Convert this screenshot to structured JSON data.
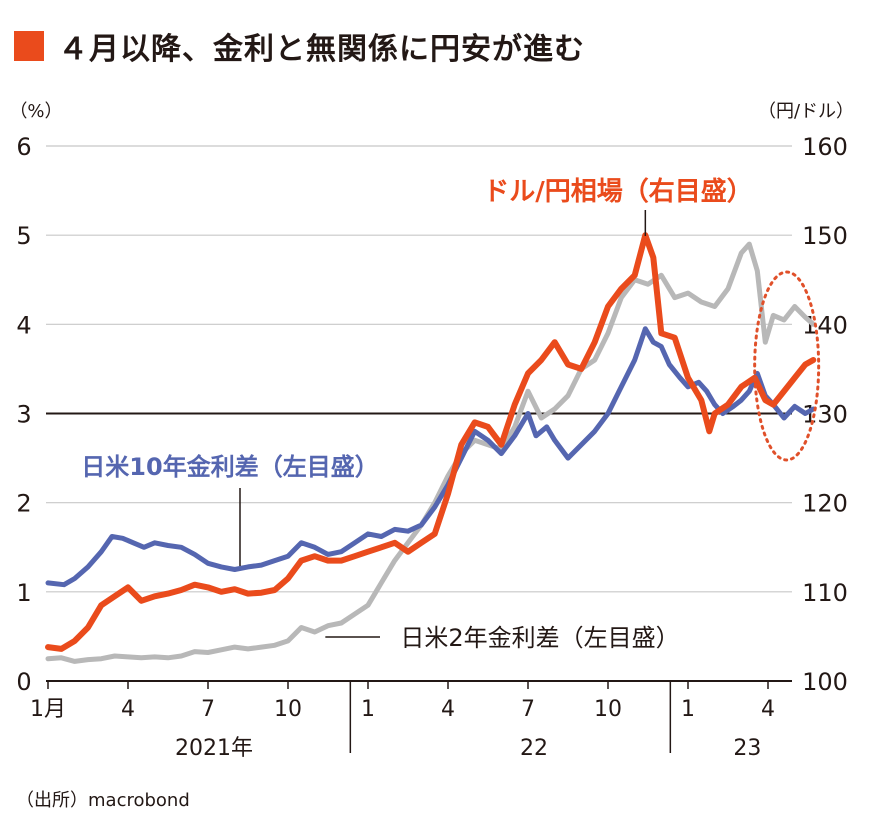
{
  "title": "４月以降、金利と無関係に円安が進む",
  "source": "（出所）macrobond",
  "colors": {
    "title_square": "#ea4b1c",
    "usdjpy": "#ea4b1c",
    "spread10y": "#5566b0",
    "spread2y": "#b8b8b8",
    "grid": "#c8c8c8",
    "highlight_ellipse": "#e0502a"
  },
  "chart_data": {
    "type": "line",
    "title": "４月以降、金利と無関係に円安が進む",
    "left_axis": {
      "unit_label": "（%）",
      "min": 0,
      "max": 6,
      "ticks": [
        "0",
        "1",
        "2",
        "3",
        "4",
        "5",
        "6"
      ]
    },
    "right_axis": {
      "unit_label": "（円/ドル）",
      "min": 100,
      "max": 160,
      "ticks": [
        "100",
        "110",
        "120",
        "130",
        "140",
        "150",
        "160"
      ]
    },
    "x_ticks": [
      {
        "label": "1月",
        "t": 0
      },
      {
        "label": "4",
        "t": 3
      },
      {
        "label": "7",
        "t": 6
      },
      {
        "label": "10",
        "t": 9
      },
      {
        "label": "1",
        "t": 12
      },
      {
        "label": "4",
        "t": 15
      },
      {
        "label": "7",
        "t": 18
      },
      {
        "label": "10",
        "t": 21
      },
      {
        "label": "1",
        "t": 24
      },
      {
        "label": "4",
        "t": 27
      }
    ],
    "year_labels": [
      {
        "label": "2021年",
        "t": 6
      },
      {
        "label": "22",
        "t": 18
      },
      {
        "label": "23",
        "t": 26
      }
    ],
    "year_separators_t": [
      11,
      23
    ],
    "x_range": [
      0,
      28.7
    ],
    "series": [
      {
        "name": "日米10年金利差（左目盛）",
        "axis": "left",
        "color_key": "spread10y",
        "points": [
          [
            0,
            1.1
          ],
          [
            0.6,
            1.08
          ],
          [
            1.0,
            1.15
          ],
          [
            1.5,
            1.28
          ],
          [
            2.0,
            1.45
          ],
          [
            2.4,
            1.62
          ],
          [
            2.8,
            1.6
          ],
          [
            3.2,
            1.55
          ],
          [
            3.6,
            1.5
          ],
          [
            4.0,
            1.55
          ],
          [
            4.5,
            1.52
          ],
          [
            5.0,
            1.5
          ],
          [
            5.5,
            1.42
          ],
          [
            6.0,
            1.32
          ],
          [
            6.5,
            1.28
          ],
          [
            7.0,
            1.25
          ],
          [
            7.5,
            1.28
          ],
          [
            8.0,
            1.3
          ],
          [
            8.5,
            1.35
          ],
          [
            9.0,
            1.4
          ],
          [
            9.5,
            1.55
          ],
          [
            10.0,
            1.5
          ],
          [
            10.5,
            1.42
          ],
          [
            11.0,
            1.45
          ],
          [
            11.5,
            1.55
          ],
          [
            12.0,
            1.65
          ],
          [
            12.5,
            1.62
          ],
          [
            13.0,
            1.7
          ],
          [
            13.5,
            1.68
          ],
          [
            14.0,
            1.75
          ],
          [
            14.5,
            1.95
          ],
          [
            15.0,
            2.2
          ],
          [
            15.5,
            2.5
          ],
          [
            16.0,
            2.8
          ],
          [
            16.5,
            2.7
          ],
          [
            17.0,
            2.55
          ],
          [
            17.5,
            2.75
          ],
          [
            18.0,
            3.0
          ],
          [
            18.3,
            2.75
          ],
          [
            18.7,
            2.85
          ],
          [
            19.0,
            2.7
          ],
          [
            19.5,
            2.5
          ],
          [
            20.0,
            2.65
          ],
          [
            20.5,
            2.8
          ],
          [
            21.0,
            3.0
          ],
          [
            21.5,
            3.3
          ],
          [
            22.0,
            3.6
          ],
          [
            22.4,
            3.95
          ],
          [
            22.7,
            3.8
          ],
          [
            23.0,
            3.75
          ],
          [
            23.3,
            3.55
          ],
          [
            23.7,
            3.4
          ],
          [
            24.0,
            3.3
          ],
          [
            24.4,
            3.35
          ],
          [
            24.7,
            3.25
          ],
          [
            25.0,
            3.1
          ],
          [
            25.3,
            3.0
          ],
          [
            25.7,
            3.08
          ],
          [
            26.0,
            3.15
          ],
          [
            26.3,
            3.25
          ],
          [
            26.6,
            3.45
          ],
          [
            26.9,
            3.2
          ],
          [
            27.2,
            3.1
          ],
          [
            27.6,
            2.95
          ],
          [
            28.0,
            3.08
          ],
          [
            28.4,
            3.0
          ],
          [
            28.7,
            3.05
          ]
        ]
      },
      {
        "name": "日米2年金利差（左目盛）",
        "axis": "left",
        "color_key": "spread2y",
        "points": [
          [
            0,
            0.25
          ],
          [
            0.5,
            0.26
          ],
          [
            1.0,
            0.22
          ],
          [
            1.5,
            0.24
          ],
          [
            2.0,
            0.25
          ],
          [
            2.5,
            0.28
          ],
          [
            3.0,
            0.27
          ],
          [
            3.5,
            0.26
          ],
          [
            4.0,
            0.27
          ],
          [
            4.5,
            0.26
          ],
          [
            5.0,
            0.28
          ],
          [
            5.5,
            0.33
          ],
          [
            6.0,
            0.32
          ],
          [
            6.5,
            0.35
          ],
          [
            7.0,
            0.38
          ],
          [
            7.5,
            0.36
          ],
          [
            8.0,
            0.38
          ],
          [
            8.5,
            0.4
          ],
          [
            9.0,
            0.45
          ],
          [
            9.5,
            0.6
          ],
          [
            10.0,
            0.55
          ],
          [
            10.5,
            0.62
          ],
          [
            11.0,
            0.65
          ],
          [
            11.5,
            0.75
          ],
          [
            12.0,
            0.85
          ],
          [
            12.5,
            1.1
          ],
          [
            13.0,
            1.35
          ],
          [
            13.5,
            1.55
          ],
          [
            14.0,
            1.75
          ],
          [
            14.5,
            2.0
          ],
          [
            15.0,
            2.3
          ],
          [
            15.5,
            2.55
          ],
          [
            16.0,
            2.7
          ],
          [
            16.5,
            2.65
          ],
          [
            17.0,
            2.6
          ],
          [
            17.5,
            2.85
          ],
          [
            18.0,
            3.25
          ],
          [
            18.5,
            2.95
          ],
          [
            19.0,
            3.05
          ],
          [
            19.5,
            3.2
          ],
          [
            20.0,
            3.5
          ],
          [
            20.5,
            3.6
          ],
          [
            21.0,
            3.9
          ],
          [
            21.5,
            4.3
          ],
          [
            22.0,
            4.5
          ],
          [
            22.5,
            4.45
          ],
          [
            23.0,
            4.55
          ],
          [
            23.5,
            4.3
          ],
          [
            24.0,
            4.35
          ],
          [
            24.5,
            4.25
          ],
          [
            25.0,
            4.2
          ],
          [
            25.5,
            4.4
          ],
          [
            26.0,
            4.8
          ],
          [
            26.3,
            4.9
          ],
          [
            26.6,
            4.6
          ],
          [
            26.9,
            3.8
          ],
          [
            27.2,
            4.1
          ],
          [
            27.6,
            4.05
          ],
          [
            28.0,
            4.2
          ],
          [
            28.4,
            4.08
          ],
          [
            28.7,
            4.0
          ]
        ]
      },
      {
        "name": "ドル/円相場（右目盛）",
        "axis": "right",
        "color_key": "usdjpy",
        "points": [
          [
            0,
            103.8
          ],
          [
            0.5,
            103.6
          ],
          [
            1.0,
            104.5
          ],
          [
            1.5,
            106.0
          ],
          [
            2.0,
            108.5
          ],
          [
            2.5,
            109.5
          ],
          [
            3.0,
            110.5
          ],
          [
            3.5,
            109.0
          ],
          [
            4.0,
            109.5
          ],
          [
            4.5,
            109.8
          ],
          [
            5.0,
            110.2
          ],
          [
            5.5,
            110.8
          ],
          [
            6.0,
            110.5
          ],
          [
            6.5,
            110.0
          ],
          [
            7.0,
            110.3
          ],
          [
            7.5,
            109.8
          ],
          [
            8.0,
            109.9
          ],
          [
            8.5,
            110.2
          ],
          [
            9.0,
            111.5
          ],
          [
            9.5,
            113.5
          ],
          [
            10.0,
            114.0
          ],
          [
            10.5,
            113.5
          ],
          [
            11.0,
            113.5
          ],
          [
            11.5,
            114.0
          ],
          [
            12.0,
            114.5
          ],
          [
            12.5,
            115.0
          ],
          [
            13.0,
            115.5
          ],
          [
            13.5,
            114.5
          ],
          [
            14.0,
            115.5
          ],
          [
            14.5,
            116.5
          ],
          [
            15.0,
            121.0
          ],
          [
            15.5,
            126.5
          ],
          [
            16.0,
            129.0
          ],
          [
            16.5,
            128.5
          ],
          [
            17.0,
            126.5
          ],
          [
            17.5,
            131.0
          ],
          [
            18.0,
            134.5
          ],
          [
            18.5,
            136.0
          ],
          [
            19.0,
            138.0
          ],
          [
            19.5,
            135.5
          ],
          [
            20.0,
            135.0
          ],
          [
            20.5,
            138.0
          ],
          [
            21.0,
            142.0
          ],
          [
            21.5,
            144.0
          ],
          [
            22.0,
            145.5
          ],
          [
            22.4,
            150.0
          ],
          [
            22.7,
            147.5
          ],
          [
            23.0,
            139.0
          ],
          [
            23.5,
            138.5
          ],
          [
            24.0,
            134.0
          ],
          [
            24.5,
            131.5
          ],
          [
            24.8,
            128.0
          ],
          [
            25.0,
            130.0
          ],
          [
            25.5,
            131.0
          ],
          [
            26.0,
            133.0
          ],
          [
            26.5,
            134.0
          ],
          [
            26.9,
            131.5
          ],
          [
            27.2,
            131.0
          ],
          [
            27.6,
            132.5
          ],
          [
            28.0,
            134.0
          ],
          [
            28.4,
            135.5
          ],
          [
            28.7,
            136.0
          ]
        ]
      }
    ],
    "annotations": [
      {
        "text": "ドル/円相場（右目盛）",
        "series": "usdjpy",
        "t": 22.4
      },
      {
        "text": "日米10年金利差（左目盛）",
        "series": "spread10y",
        "t": 7.2
      },
      {
        "text": "日米2年金利差（左目盛）",
        "series": "spread2y",
        "t": 10.4
      }
    ],
    "highlight": {
      "shape": "dotted-ellipse",
      "from_t": 26.5,
      "to_t": 28.9
    }
  }
}
